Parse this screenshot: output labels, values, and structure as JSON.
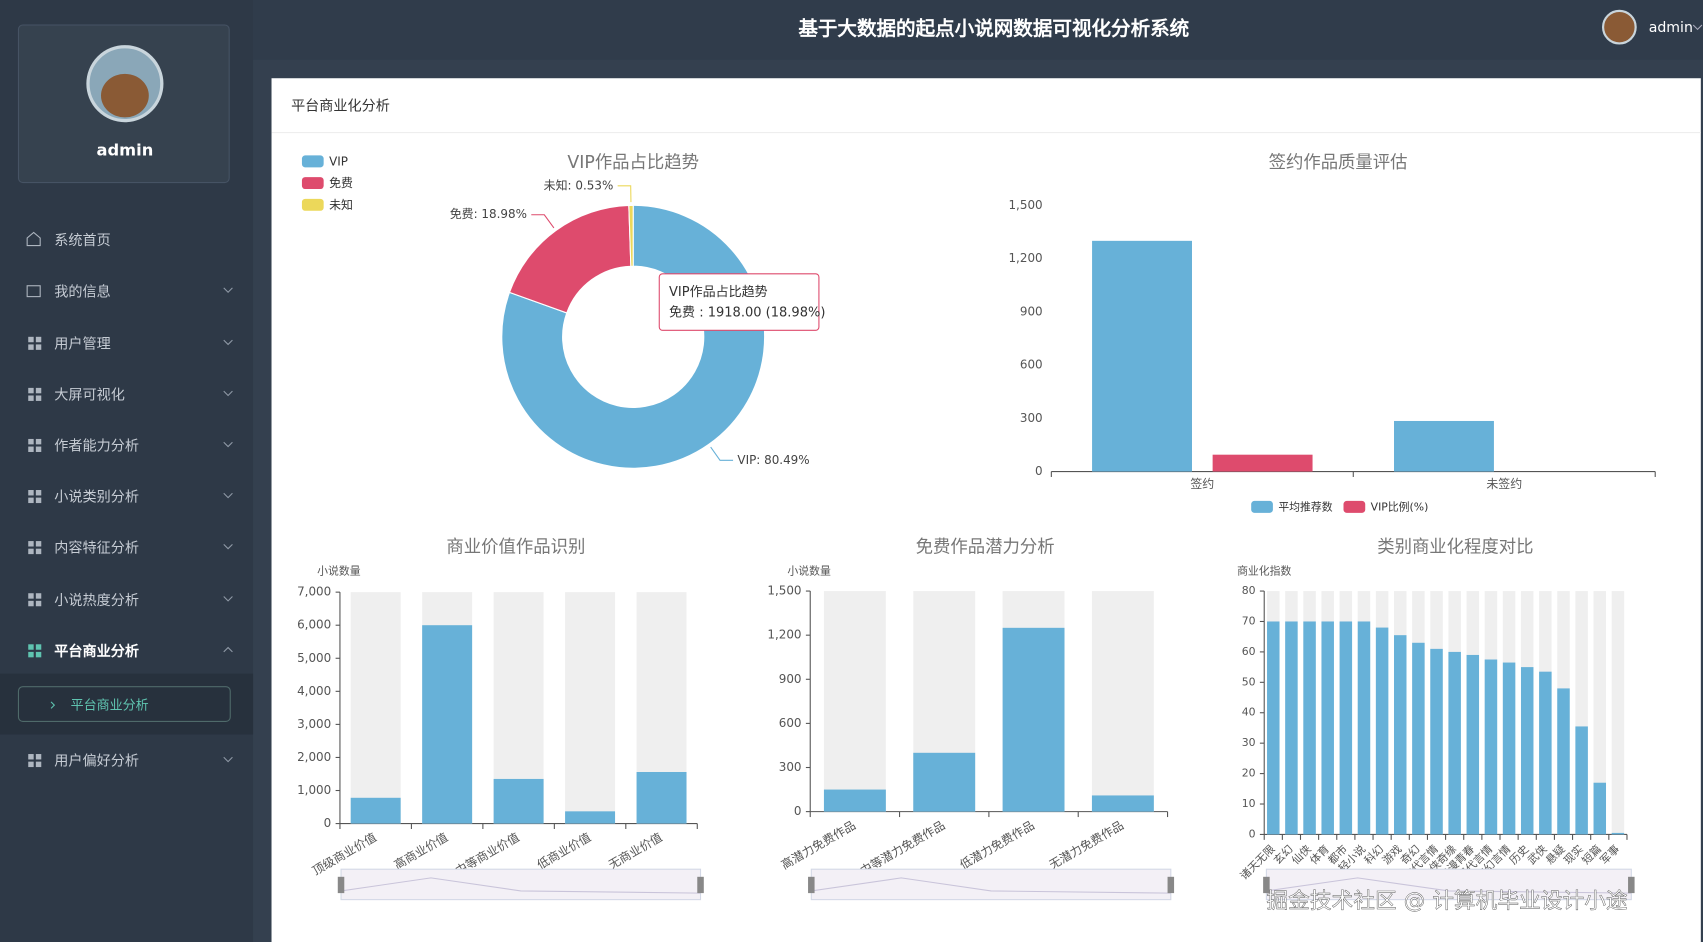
{
  "header": {
    "title": "基于大数据的起点小说网数据可视化分析系统",
    "user": "admin"
  },
  "sidebar": {
    "user": "admin",
    "menu": [
      "系统首页",
      "我的信息",
      "用户管理",
      "大屏可视化",
      "作者能力分析",
      "小说类别分析",
      "内容特征分析",
      "小说热度分析",
      "平台商业分析",
      "用户偏好分析"
    ],
    "submenu": [
      "平台商业分析"
    ]
  },
  "panel": {
    "title": "平台商业化分析"
  },
  "watermark": "掘金技术社区 @ 计算机毕业设计小途",
  "chart_data": [
    {
      "type": "pie",
      "title": "VIP作品占比趋势",
      "categories": [
        "VIP",
        "免费",
        "未知"
      ],
      "values": [
        80.49,
        18.98,
        0.53
      ],
      "value_labels": [
        "VIP: 80.49%",
        "免费: 18.98%",
        "未知: 0.53%"
      ],
      "colors": [
        "#67b1d8",
        "#de4b6d",
        "#ecd85a"
      ],
      "legend": "top-left",
      "tooltip": {
        "title": "VIP作品占比趋势",
        "text": "免费 : 1918.00 (18.98%)"
      }
    },
    {
      "type": "bar",
      "title": "签约作品质量评估",
      "categories": [
        "签约",
        "未签约"
      ],
      "series": [
        {
          "name": "平均推荐数",
          "color": "#67b1d8",
          "values": [
            1300,
            285
          ]
        },
        {
          "name": "VIP比例(%)",
          "color": "#de4b6d",
          "values": [
            95,
            0
          ]
        }
      ],
      "ylim": [
        0,
        1500
      ],
      "yticks": [
        0,
        300,
        600,
        900,
        {
          "value": 1200,
          "label": "1,200"
        },
        {
          "value": 1500,
          "label": "1,500"
        }
      ],
      "legend": "bottom"
    },
    {
      "type": "bar",
      "title": "商业价值作品识别",
      "y_axis_label": "小说数量",
      "categories": [
        "顶级商业价值",
        "高商业价值",
        "中等商业价值",
        "低商业价值",
        "无商业价值"
      ],
      "values": [
        780,
        6000,
        1350,
        370,
        1560
      ],
      "color": "#67b1d8",
      "show_background": true,
      "ylim": [
        0,
        7000
      ],
      "yticks": [
        0,
        {
          "value": 1000,
          "label": "1,000"
        },
        {
          "value": 2000,
          "label": "2,000"
        },
        {
          "value": 3000,
          "label": "3,000"
        },
        {
          "value": 4000,
          "label": "4,000"
        },
        {
          "value": 5000,
          "label": "5,000"
        },
        {
          "value": 6000,
          "label": "6,000"
        },
        {
          "value": 7000,
          "label": "7,000"
        }
      ]
    },
    {
      "type": "bar",
      "title": "免费作品潜力分析",
      "y_axis_label": "小说数量",
      "categories": [
        "高潜力免费作品",
        "中等潜力免费作品",
        "低潜力免费作品",
        "无潜力免费作品"
      ],
      "values": [
        150,
        400,
        1250,
        110
      ],
      "color": "#67b1d8",
      "show_background": true,
      "ylim": [
        0,
        1500
      ],
      "yticks": [
        0,
        300,
        600,
        900,
        {
          "value": 1200,
          "label": "1,200"
        },
        {
          "value": 1500,
          "label": "1,500"
        }
      ]
    },
    {
      "type": "bar",
      "title": "类别商业化程度对比",
      "y_axis_label": "商业化指数",
      "categories": [
        "诸天无限",
        "玄幻",
        "仙侠",
        "体育",
        "都市",
        "轻小说",
        "科幻",
        "游戏",
        "奇幻",
        "古代言情",
        "仙侠奇缘",
        "浪漫青春",
        "现代言情",
        "玄幻言情",
        "历史",
        "武侠",
        "悬疑",
        "现实",
        "短篇",
        "军事"
      ],
      "values": [
        70,
        70,
        70,
        70,
        70,
        70,
        68,
        65.5,
        63,
        61,
        60,
        59,
        57.5,
        56.5,
        55,
        53.5,
        48,
        35.5,
        17,
        0.5
      ],
      "color": "#67b1d8",
      "show_background": true,
      "ylim": [
        0,
        80
      ],
      "yticks": [
        0,
        10,
        20,
        30,
        40,
        50,
        60,
        70,
        80
      ]
    }
  ]
}
